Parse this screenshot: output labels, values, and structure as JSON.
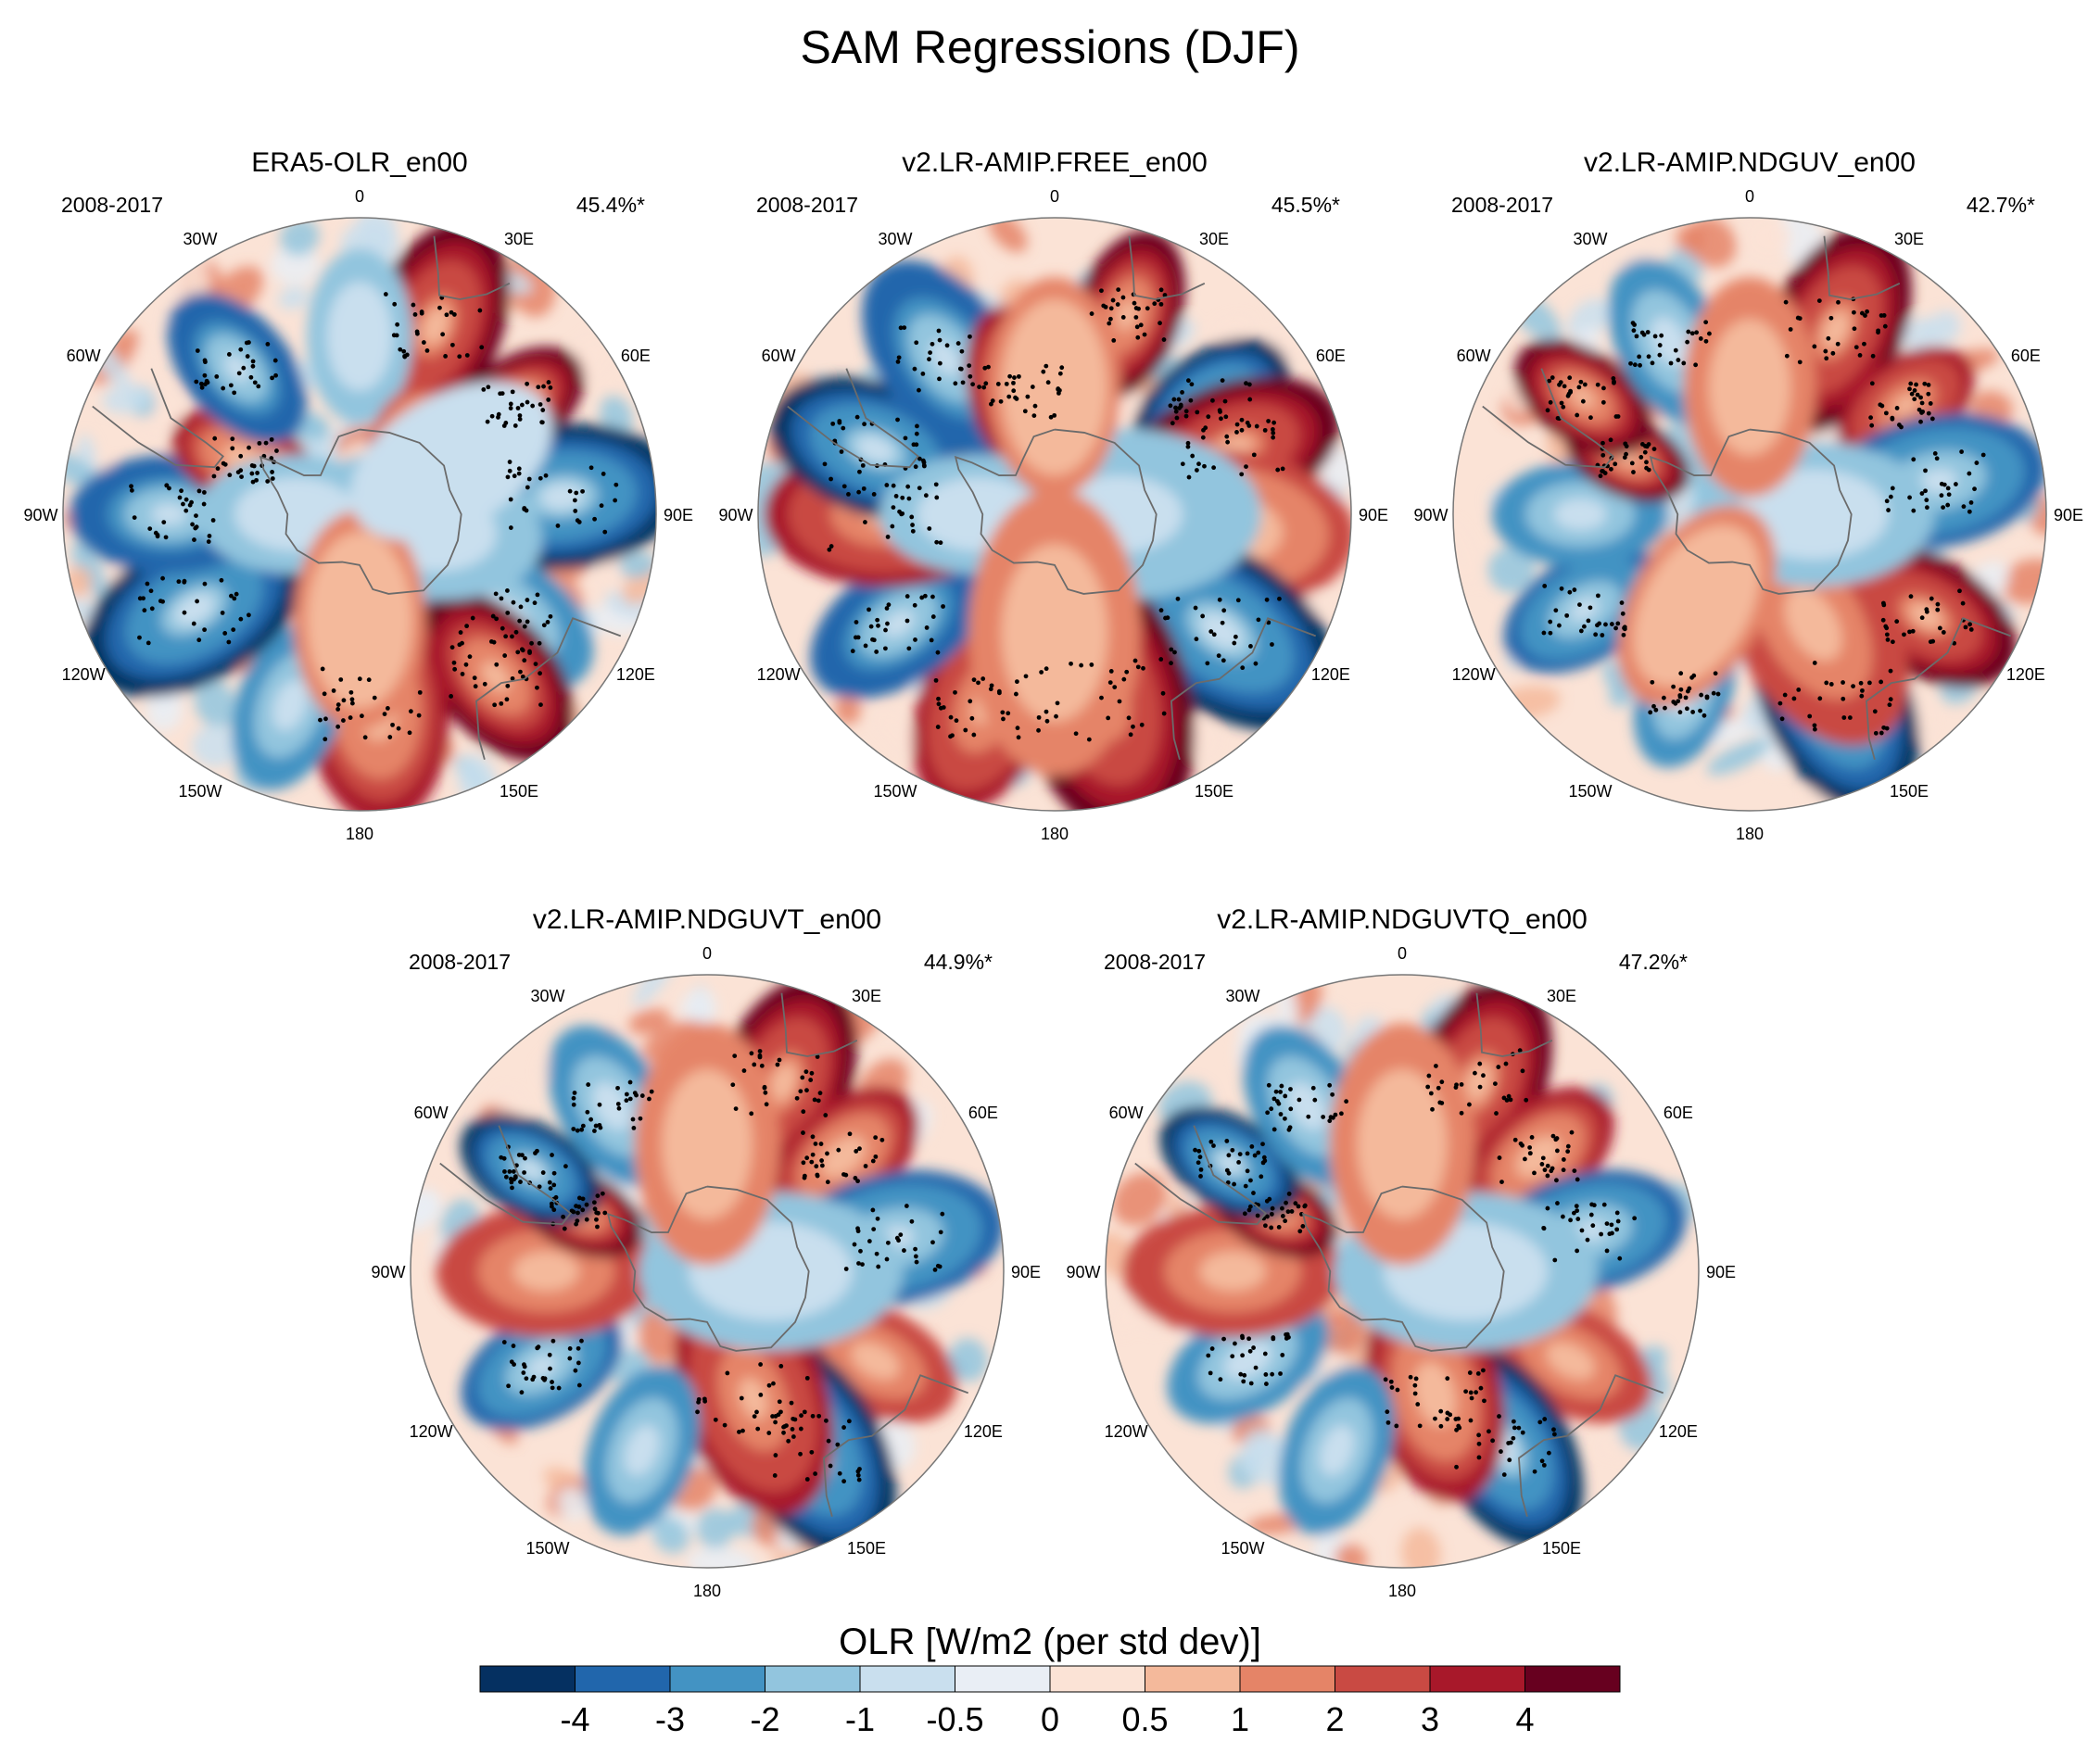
{
  "figure": {
    "title": "SAM Regressions (DJF)"
  },
  "colorbar": {
    "title": "OLR [W/m2 (per std dev)]",
    "levels": [
      "-4",
      "-3",
      "-2",
      "-1",
      "-0.5",
      "0",
      "0.5",
      "1",
      "2",
      "3",
      "4"
    ],
    "colors": [
      "#053061",
      "#2166ac",
      "#4393c3",
      "#92c5de",
      "#c9dfee",
      "#e9eef5",
      "#fbe3d6",
      "#f4b99b",
      "#e58467",
      "#c94a43",
      "#a8182a",
      "#67001f"
    ]
  },
  "chart_data": [
    {
      "type": "heatmap",
      "projection": "south-polar-stereographic",
      "title": "ERA5-OLR_en00",
      "period": "2008-2017",
      "explained_variance": "45.4%*",
      "lon_labels": [
        "0",
        "30E",
        "60E",
        "90E",
        "120E",
        "150E",
        "180",
        "150W",
        "120W",
        "90W",
        "60W",
        "30W"
      ],
      "pattern_seed": 11,
      "features": [
        {
          "lon": 22,
          "lat": -42,
          "value": 4.5,
          "size": 1.0
        },
        {
          "lon": 55,
          "lat": -45,
          "value": 4.0,
          "size": 0.7
        },
        {
          "lon": 85,
          "lat": -42,
          "value": -4.5,
          "size": 1.1
        },
        {
          "lon": 125,
          "lat": -48,
          "value": -3.0,
          "size": 0.9
        },
        {
          "lon": 140,
          "lat": -40,
          "value": 4.0,
          "size": 0.9
        },
        {
          "lon": 175,
          "lat": -45,
          "value": 3.0,
          "size": 1.1
        },
        {
          "lon": 200,
          "lat": -42,
          "value": -2.5,
          "size": 0.8
        },
        {
          "lon": 240,
          "lat": -45,
          "value": -4.5,
          "size": 1.1
        },
        {
          "lon": 270,
          "lat": -45,
          "value": -4.0,
          "size": 0.9
        },
        {
          "lon": 295,
          "lat": -60,
          "value": 3.0,
          "size": 0.7
        },
        {
          "lon": 320,
          "lat": -45,
          "value": -4.0,
          "size": 0.8
        },
        {
          "lon": 0,
          "lat": -48,
          "value": -1.5,
          "size": 0.8
        },
        {
          "lon": 100,
          "lat": -75,
          "value": -1.5,
          "size": 1.1
        },
        {
          "lon": 270,
          "lat": -75,
          "value": -1.5,
          "size": 0.9
        },
        {
          "lon": 30,
          "lat": -68,
          "value": 2.0,
          "size": 0.5
        },
        {
          "lon": 180,
          "lat": -65,
          "value": 1.0,
          "size": 1.0
        },
        {
          "lon": 60,
          "lat": -65,
          "value": -0.8,
          "size": 1.0
        }
      ]
    },
    {
      "type": "heatmap",
      "projection": "south-polar-stereographic",
      "title": "v2.LR-AMIP.FREE_en00",
      "period": "2008-2017",
      "explained_variance": "45.5%*",
      "lon_labels": [
        "0",
        "30E",
        "60E",
        "90E",
        "120E",
        "150E",
        "180",
        "150W",
        "120W",
        "90W",
        "60W",
        "30W"
      ],
      "pattern_seed": 23,
      "features": [
        {
          "lon": 20,
          "lat": -40,
          "value": 4.0,
          "size": 0.8
        },
        {
          "lon": 55,
          "lat": -45,
          "value": -4.5,
          "size": 0.8
        },
        {
          "lon": 70,
          "lat": -45,
          "value": 4.5,
          "size": 1.0
        },
        {
          "lon": 95,
          "lat": -50,
          "value": 2.0,
          "size": 1.2
        },
        {
          "lon": 125,
          "lat": -42,
          "value": -4.5,
          "size": 1.2
        },
        {
          "lon": 165,
          "lat": -45,
          "value": 4.5,
          "size": 1.3
        },
        {
          "lon": 200,
          "lat": -42,
          "value": 3.5,
          "size": 1.0
        },
        {
          "lon": 235,
          "lat": -45,
          "value": -4.0,
          "size": 0.9
        },
        {
          "lon": 270,
          "lat": -50,
          "value": 3.5,
          "size": 1.1
        },
        {
          "lon": 290,
          "lat": -45,
          "value": -4.5,
          "size": 1.0
        },
        {
          "lon": 325,
          "lat": -45,
          "value": -4.0,
          "size": 1.0
        },
        {
          "lon": 345,
          "lat": -60,
          "value": 3.0,
          "size": 0.8
        },
        {
          "lon": 90,
          "lat": -75,
          "value": -2.0,
          "size": 1.3
        },
        {
          "lon": 270,
          "lat": -72,
          "value": -1.5,
          "size": 0.9
        },
        {
          "lon": 180,
          "lat": -62,
          "value": 1.5,
          "size": 1.3
        },
        {
          "lon": 0,
          "lat": -60,
          "value": 1.0,
          "size": 1.0
        }
      ]
    },
    {
      "type": "heatmap",
      "projection": "south-polar-stereographic",
      "title": "v2.LR-AMIP.NDGUV_en00",
      "period": "2008-2017",
      "explained_variance": "42.7%*",
      "lon_labels": [
        "0",
        "30E",
        "60E",
        "90E",
        "120E",
        "150E",
        "180",
        "150W",
        "120W",
        "90W",
        "60W",
        "30W"
      ],
      "pattern_seed": 37,
      "features": [
        {
          "lon": 25,
          "lat": -42,
          "value": 4.5,
          "size": 1.0
        },
        {
          "lon": 55,
          "lat": -45,
          "value": 3.5,
          "size": 0.7
        },
        {
          "lon": 80,
          "lat": -45,
          "value": -3.5,
          "size": 1.0
        },
        {
          "lon": 120,
          "lat": -42,
          "value": 4.5,
          "size": 0.9
        },
        {
          "lon": 155,
          "lat": -42,
          "value": -4.5,
          "size": 1.1
        },
        {
          "lon": 150,
          "lat": -60,
          "value": 2.5,
          "size": 1.2
        },
        {
          "lon": 200,
          "lat": -45,
          "value": -3.0,
          "size": 0.7
        },
        {
          "lon": 240,
          "lat": -45,
          "value": -3.5,
          "size": 0.8
        },
        {
          "lon": 270,
          "lat": -50,
          "value": -2.5,
          "size": 0.8
        },
        {
          "lon": 295,
          "lat": -58,
          "value": 4.0,
          "size": 0.6
        },
        {
          "lon": 305,
          "lat": -42,
          "value": 4.0,
          "size": 0.7
        },
        {
          "lon": 335,
          "lat": -45,
          "value": -3.0,
          "size": 0.8
        },
        {
          "lon": 90,
          "lat": -75,
          "value": -1.5,
          "size": 1.1
        },
        {
          "lon": 0,
          "lat": -60,
          "value": 1.5,
          "size": 1.0
        },
        {
          "lon": 210,
          "lat": -65,
          "value": 1.0,
          "size": 1.0
        }
      ]
    },
    {
      "type": "heatmap",
      "projection": "south-polar-stereographic",
      "title": "v2.LR-AMIP.NDGUVT_en00",
      "period": "2008-2017",
      "explained_variance": "44.9%*",
      "lon_labels": [
        "0",
        "30E",
        "60E",
        "90E",
        "120E",
        "150E",
        "180",
        "150W",
        "120W",
        "90W",
        "60W",
        "30W"
      ],
      "pattern_seed": 53,
      "features": [
        {
          "lon": 22,
          "lat": -42,
          "value": 4.5,
          "size": 1.0
        },
        {
          "lon": 50,
          "lat": -48,
          "value": 3.0,
          "size": 0.8
        },
        {
          "lon": 80,
          "lat": -45,
          "value": -3.5,
          "size": 1.0
        },
        {
          "lon": 118,
          "lat": -45,
          "value": 2.5,
          "size": 0.8
        },
        {
          "lon": 150,
          "lat": -42,
          "value": -4.5,
          "size": 1.1
        },
        {
          "lon": 160,
          "lat": -58,
          "value": 3.5,
          "size": 1.1
        },
        {
          "lon": 200,
          "lat": -45,
          "value": -2.5,
          "size": 0.8
        },
        {
          "lon": 240,
          "lat": -45,
          "value": -3.5,
          "size": 0.8
        },
        {
          "lon": 270,
          "lat": -52,
          "value": 2.5,
          "size": 1.0
        },
        {
          "lon": 295,
          "lat": -57,
          "value": 4.0,
          "size": 0.6
        },
        {
          "lon": 300,
          "lat": -42,
          "value": -4.5,
          "size": 0.7
        },
        {
          "lon": 330,
          "lat": -45,
          "value": -3.0,
          "size": 0.8
        },
        {
          "lon": 90,
          "lat": -75,
          "value": -1.5,
          "size": 1.2
        },
        {
          "lon": 0,
          "lat": -60,
          "value": 1.5,
          "size": 1.1
        }
      ]
    },
    {
      "type": "heatmap",
      "projection": "south-polar-stereographic",
      "title": "v2.LR-AMIP.NDGUVTQ_en00",
      "period": "2008-2017",
      "explained_variance": "47.2%*",
      "lon_labels": [
        "0",
        "30E",
        "60E",
        "90E",
        "120E",
        "150E",
        "180",
        "150W",
        "120W",
        "90W",
        "60W",
        "30W"
      ],
      "pattern_seed": 71,
      "features": [
        {
          "lon": 22,
          "lat": -42,
          "value": 4.5,
          "size": 1.0
        },
        {
          "lon": 50,
          "lat": -48,
          "value": 3.0,
          "size": 0.8
        },
        {
          "lon": 78,
          "lat": -45,
          "value": -3.5,
          "size": 0.9
        },
        {
          "lon": 118,
          "lat": -45,
          "value": 2.5,
          "size": 0.8
        },
        {
          "lon": 150,
          "lat": -42,
          "value": -4.5,
          "size": 1.0
        },
        {
          "lon": 165,
          "lat": -60,
          "value": 3.0,
          "size": 1.0
        },
        {
          "lon": 200,
          "lat": -45,
          "value": -2.5,
          "size": 0.8
        },
        {
          "lon": 240,
          "lat": -48,
          "value": -3.0,
          "size": 0.8
        },
        {
          "lon": 270,
          "lat": -50,
          "value": 2.5,
          "size": 1.0
        },
        {
          "lon": 295,
          "lat": -57,
          "value": 4.0,
          "size": 0.6
        },
        {
          "lon": 302,
          "lat": -42,
          "value": -4.5,
          "size": 0.7
        },
        {
          "lon": 330,
          "lat": -45,
          "value": -3.0,
          "size": 0.8
        },
        {
          "lon": 90,
          "lat": -75,
          "value": -1.5,
          "size": 1.2
        },
        {
          "lon": 0,
          "lat": -60,
          "value": 1.5,
          "size": 1.1
        }
      ]
    }
  ]
}
